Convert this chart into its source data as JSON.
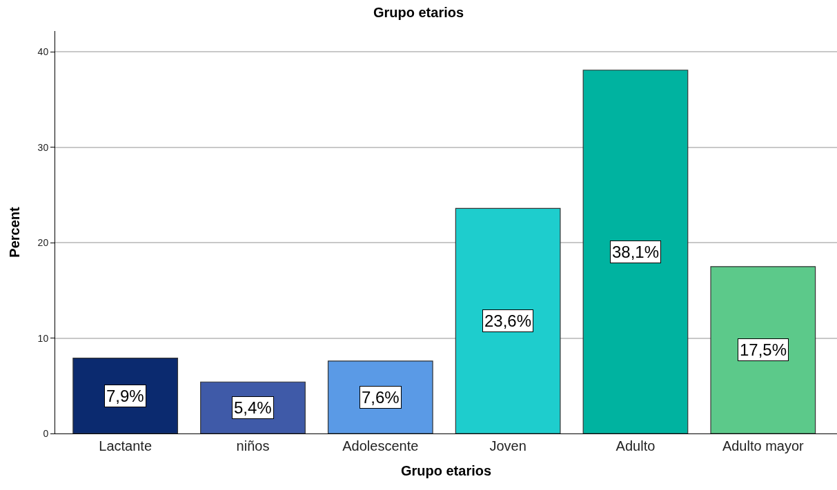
{
  "chart_data": {
    "type": "bar",
    "title": "Grupo etarios",
    "xlabel": "Grupo etarios",
    "ylabel": "Percent",
    "categories": [
      "Lactante",
      "niños",
      "Adolescente",
      "Joven",
      "Adulto",
      "Adulto mayor"
    ],
    "values": [
      7.9,
      5.4,
      7.6,
      23.6,
      38.1,
      17.5
    ],
    "colors": [
      "#0b2a6f",
      "#3f5aa8",
      "#5a9ae6",
      "#1ecdcd",
      "#00b3a0",
      "#5cc98a"
    ],
    "value_labels": [
      "7,9%",
      "5,4%",
      "7,6%",
      "23,6%",
      "38,1%",
      "17,5%"
    ],
    "ylim": [
      0,
      42.2
    ],
    "yticks": [
      0,
      10,
      20,
      30,
      40
    ],
    "grid": "y"
  }
}
